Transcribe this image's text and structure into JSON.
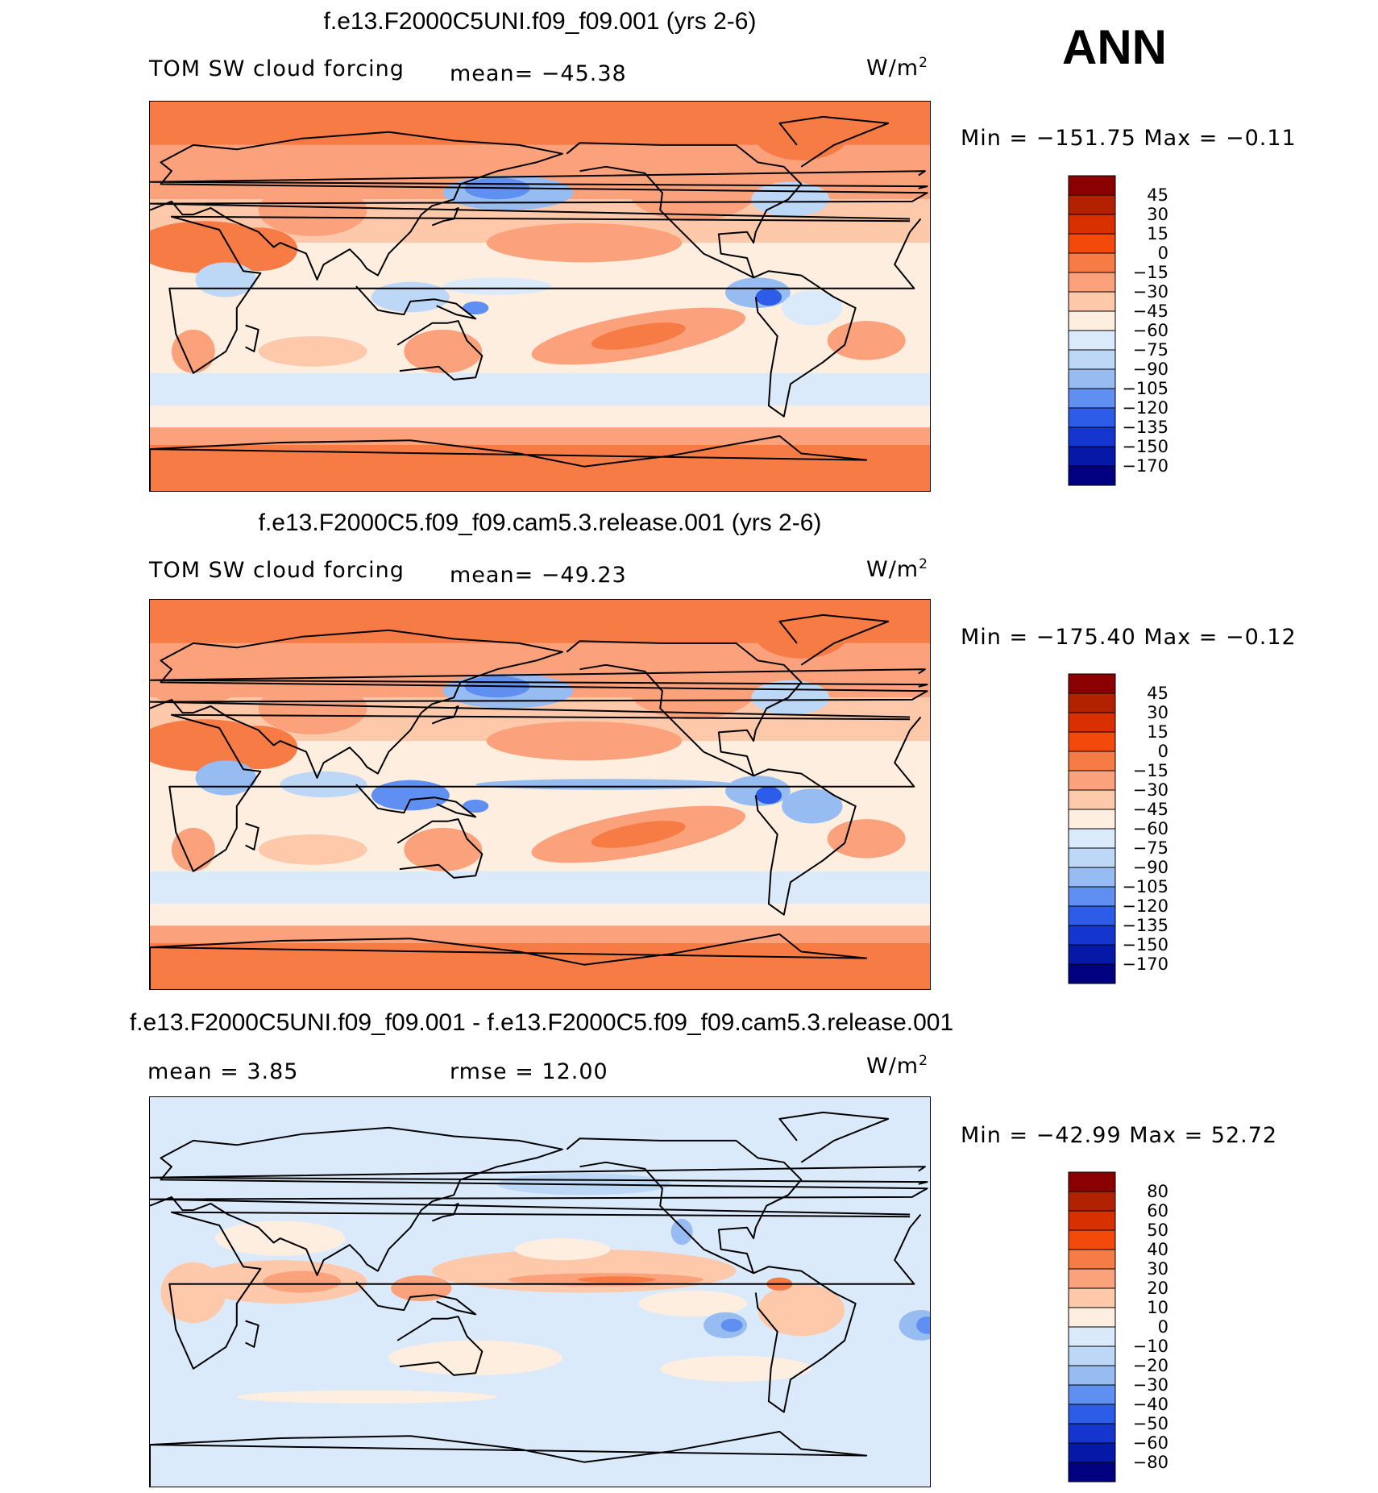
{
  "season": "ANN",
  "units_prefix": "W/m",
  "units_power": "2",
  "panels": [
    {
      "title": "f.e13.F2000C5UNI.f09_f09.001 (yrs 2-6)",
      "variable": "TOM SW cloud forcing",
      "mean_text": "mean= −45.38",
      "rmse_text": "",
      "minmax_text": "Min = −151.75 Max =  −0.11",
      "colorbar_labels": [
        "45",
        "30",
        "15",
        "0",
        "−15",
        "−30",
        "−45",
        "−60",
        "−75",
        "−90",
        "−105",
        "−120",
        "−135",
        "−150",
        "−170"
      ]
    },
    {
      "title": "f.e13.F2000C5.f09_f09.cam5.3.release.001 (yrs 2-6)",
      "variable": "TOM SW cloud forcing",
      "mean_text": "mean= −49.23",
      "rmse_text": "",
      "minmax_text": "Min = −175.40 Max =  −0.12",
      "colorbar_labels": [
        "45",
        "30",
        "15",
        "0",
        "−15",
        "−30",
        "−45",
        "−60",
        "−75",
        "−90",
        "−105",
        "−120",
        "−135",
        "−150",
        "−170"
      ]
    },
    {
      "title": "f.e13.F2000C5UNI.f09_f09.001 - f.e13.F2000C5.f09_f09.cam5.3.release.001",
      "variable": "",
      "mean_text": "mean =    3.85",
      "rmse_text": "rmse =   12.00",
      "minmax_text": "Min = −42.99 Max =   52.72",
      "colorbar_labels": [
        "80",
        "60",
        "50",
        "40",
        "30",
        "20",
        "10",
        "0",
        "−10",
        "−20",
        "−30",
        "−40",
        "−50",
        "−60",
        "−80"
      ]
    }
  ],
  "chart_data": [
    {
      "type": "heatmap",
      "title": "f.e13.F2000C5UNI.f09_f09.001 (yrs 2-6)",
      "variable": "TOM SW cloud forcing",
      "units": "W/m2",
      "mean": -45.38,
      "min": -151.75,
      "max": -0.11,
      "levels": [
        45,
        30,
        15,
        0,
        -15,
        -30,
        -45,
        -60,
        -75,
        -90,
        -105,
        -120,
        -135,
        -150,
        -170
      ],
      "colors": [
        "#8b0000",
        "#b22200",
        "#d83000",
        "#f34a0c",
        "#f77b45",
        "#fba27c",
        "#fdc9aa",
        "#fdeee0",
        "#dbeafb",
        "#bdd7f6",
        "#97bcf1",
        "#5f8ff0",
        "#2d5de8",
        "#1535cf",
        "#0618a8",
        "#000080"
      ]
    },
    {
      "type": "heatmap",
      "title": "f.e13.F2000C5.f09_f09.cam5.3.release.001 (yrs 2-6)",
      "variable": "TOM SW cloud forcing",
      "units": "W/m2",
      "mean": -49.23,
      "min": -175.4,
      "max": -0.12,
      "levels": [
        45,
        30,
        15,
        0,
        -15,
        -30,
        -45,
        -60,
        -75,
        -90,
        -105,
        -120,
        -135,
        -150,
        -170
      ],
      "colors": [
        "#8b0000",
        "#b22200",
        "#d83000",
        "#f34a0c",
        "#f77b45",
        "#fba27c",
        "#fdc9aa",
        "#fdeee0",
        "#dbeafb",
        "#bdd7f6",
        "#97bcf1",
        "#5f8ff0",
        "#2d5de8",
        "#1535cf",
        "#0618a8",
        "#000080"
      ]
    },
    {
      "type": "heatmap",
      "title": "f.e13.F2000C5UNI.f09_f09.001 - f.e13.F2000C5.f09_f09.cam5.3.release.001",
      "units": "W/m2",
      "mean": 3.85,
      "rmse": 12.0,
      "min": -42.99,
      "max": 52.72,
      "levels": [
        80,
        60,
        50,
        40,
        30,
        20,
        10,
        0,
        -10,
        -20,
        -30,
        -40,
        -50,
        -60,
        -80
      ],
      "colors": [
        "#8b0000",
        "#b22200",
        "#d83000",
        "#f34a0c",
        "#f77b45",
        "#fba27c",
        "#fdc9aa",
        "#fdeee0",
        "#dbeafb",
        "#bdd7f6",
        "#97bcf1",
        "#5f8ff0",
        "#2d5de8",
        "#1535cf",
        "#0618a8",
        "#000080"
      ]
    }
  ]
}
